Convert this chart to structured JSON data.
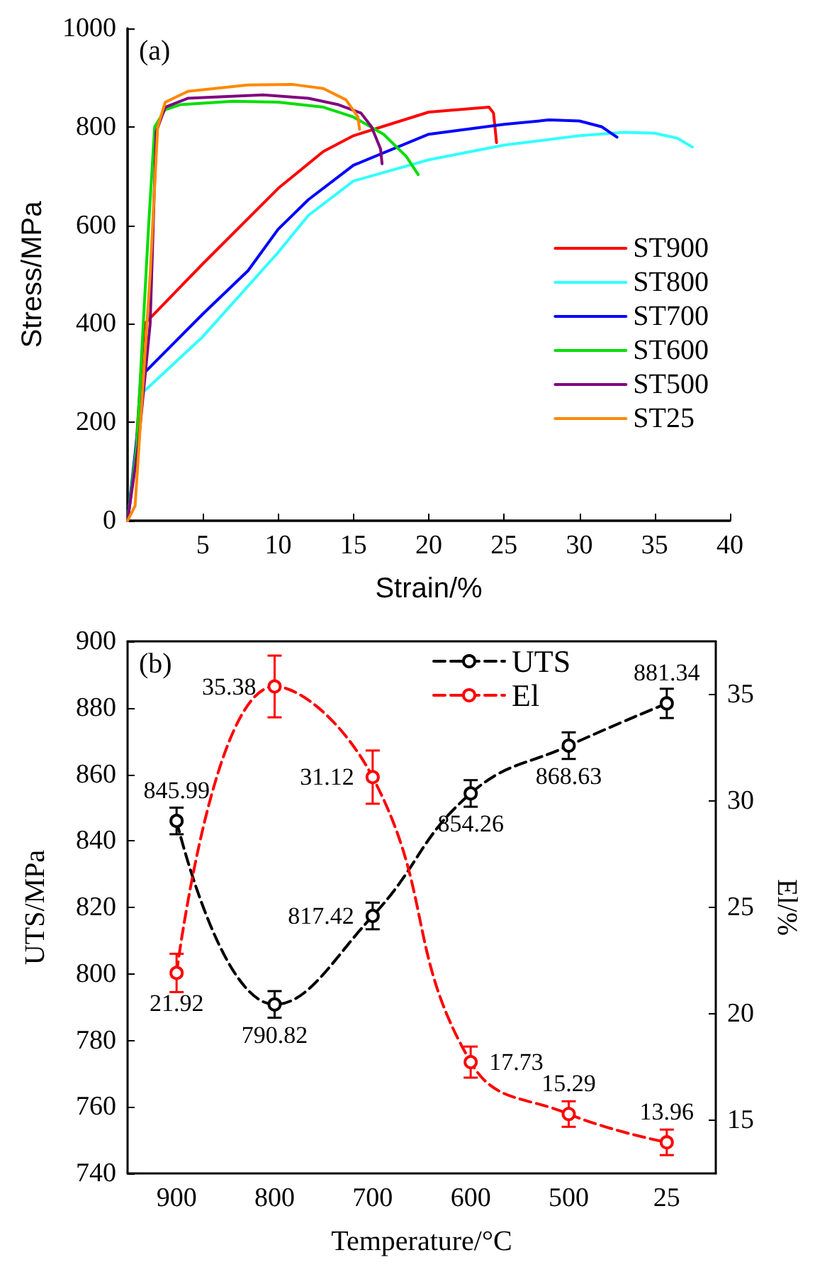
{
  "chart_data": [
    {
      "type": "line",
      "xlabel": "Strain/%",
      "ylabel": "Stress/MPa",
      "annotations": [
        "(a)"
      ],
      "xlim": [
        0,
        40
      ],
      "ylim": [
        0,
        1000
      ],
      "xticks": [
        5,
        10,
        15,
        20,
        25,
        30,
        35,
        40
      ],
      "yticks": [
        0,
        200,
        400,
        600,
        800,
        1000
      ],
      "grid": false,
      "legend": "bottom right",
      "marker": "none",
      "line_style": "solid",
      "series": [
        {
          "name": "ST900",
          "color": "#ff0000",
          "x": [
            0,
            0.5,
            1.0,
            1.1,
            5,
            10,
            13,
            15,
            20,
            24,
            24.3,
            24.5
          ],
          "values": [
            0,
            120,
            350,
            399,
            522,
            675,
            750,
            782,
            830,
            840,
            828,
            768
          ]
        },
        {
          "name": "ST800",
          "color": "#33ffff",
          "x": [
            0,
            1.0,
            5,
            10,
            12,
            15,
            20,
            25,
            30,
            33,
            35,
            36.5,
            37.5
          ],
          "values": [
            0,
            260,
            374,
            545,
            620,
            690,
            733,
            763,
            782,
            789,
            787,
            777,
            759
          ]
        },
        {
          "name": "ST700",
          "color": "#0000ff",
          "x": [
            0,
            1.1,
            5,
            8,
            10,
            12,
            15,
            20,
            25,
            28,
            30,
            31.5,
            32.5
          ],
          "values": [
            0,
            300,
            420,
            508,
            592,
            652,
            722,
            785,
            805,
            814,
            812,
            800,
            779
          ]
        },
        {
          "name": "ST600",
          "color": "#00dd00",
          "x": [
            0,
            0.6,
            1.4,
            1.8,
            2.5,
            3.5,
            7,
            10,
            13,
            15,
            17,
            18.5,
            19.3
          ],
          "values": [
            0,
            150,
            600,
            800,
            835,
            845,
            852,
            850,
            840,
            820,
            785,
            740,
            703
          ]
        },
        {
          "name": "ST500",
          "color": "#800080",
          "x": [
            0,
            0.7,
            1.5,
            1.9,
            2.5,
            4,
            9,
            12,
            14,
            15.5,
            16.2,
            16.8,
            16.9
          ],
          "values": [
            0,
            150,
            400,
            790,
            840,
            858,
            865,
            858,
            845,
            828,
            800,
            755,
            725
          ]
        },
        {
          "name": "ST25",
          "color": "#ff8800",
          "x": [
            0,
            0.5,
            1.5,
            2,
            2.5,
            4,
            8,
            11,
            13,
            14.5,
            15.3,
            15.4
          ],
          "values": [
            0,
            30,
            500,
            800,
            850,
            872,
            885,
            886,
            878,
            855,
            820,
            795
          ]
        }
      ]
    },
    {
      "type": "line",
      "xlabel": "Temperature/°C",
      "ylabel": "UTS/MPa",
      "y2label": "El/%",
      "annotations": [
        "(b)"
      ],
      "categories": [
        "900",
        "800",
        "700",
        "600",
        "500",
        "25"
      ],
      "ylim": [
        740,
        900
      ],
      "yticks": [
        740,
        760,
        780,
        800,
        820,
        840,
        860,
        880,
        900
      ],
      "y2lim": [
        12.5,
        37.5
      ],
      "y2ticks": [
        15,
        20,
        25,
        30,
        35
      ],
      "grid": false,
      "legend": "top",
      "marker": "circle",
      "line_style": "dashed",
      "data_labels": true,
      "series": [
        {
          "name": "UTS",
          "color": "#000000",
          "values": [
            845.99,
            790.82,
            817.42,
            854.26,
            868.63,
            881.34
          ],
          "errors": [
            4,
            4,
            4,
            4,
            4,
            4.4
          ]
        },
        {
          "name": "El",
          "color": "#ff0000",
          "axis": "y2",
          "values": [
            21.92,
            35.38,
            31.12,
            17.73,
            15.29,
            13.96
          ],
          "errors": [
            0.9,
            1.45,
            1.25,
            0.73,
            0.6,
            0.6
          ]
        }
      ]
    }
  ]
}
